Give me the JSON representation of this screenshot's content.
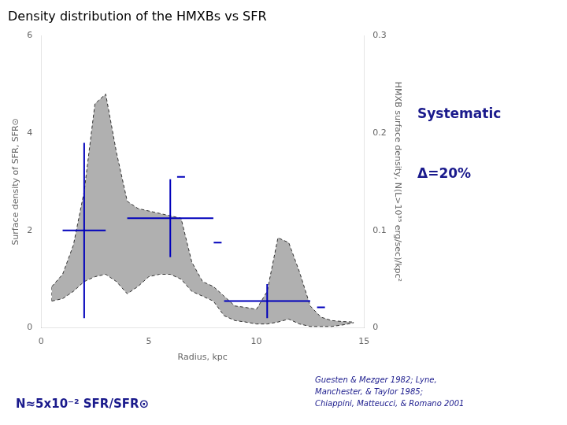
{
  "chart_data": {
    "type": "band",
    "title": "Density distribution of the HMXBs vs SFR",
    "xlabel": "Radius, kpc",
    "ylabel": "Surface density of SFR, SFR⊙",
    "y2label": "HMXB surface density, N(L>10³⁵ erg/sec)/kpc²",
    "xlim": [
      0,
      15
    ],
    "ylim": [
      0,
      6
    ],
    "y2lim": [
      0,
      0.3
    ],
    "xticks": [
      0,
      5,
      10,
      15
    ],
    "yticks": [
      0,
      2,
      4,
      6
    ],
    "y2ticks": [
      0,
      0.1,
      0.2,
      0.3
    ],
    "grid": false,
    "x": [
      0.5,
      1.0,
      1.5,
      2.0,
      2.5,
      3.0,
      3.5,
      4.0,
      4.5,
      5.0,
      5.5,
      6.0,
      6.5,
      7.0,
      7.5,
      8.0,
      8.5,
      9.0,
      9.5,
      10.0,
      10.5,
      11.0,
      11.5,
      12.0,
      12.5,
      13.0,
      13.5,
      14.0,
      14.5
    ],
    "series": [
      {
        "type": "band",
        "color": "#b0b0b0",
        "line_style": "dashed",
        "upper": [
          0.85,
          1.1,
          1.7,
          2.8,
          4.6,
          4.8,
          3.6,
          2.6,
          2.45,
          2.4,
          2.35,
          2.3,
          2.25,
          1.35,
          0.95,
          0.85,
          0.65,
          0.45,
          0.42,
          0.38,
          0.75,
          1.85,
          1.75,
          1.15,
          0.45,
          0.22,
          0.15,
          0.13,
          0.12
        ],
        "lower": [
          0.55,
          0.6,
          0.75,
          0.95,
          1.05,
          1.1,
          0.95,
          0.7,
          0.85,
          1.05,
          1.1,
          1.1,
          1.0,
          0.75,
          0.65,
          0.55,
          0.25,
          0.15,
          0.12,
          0.08,
          0.08,
          0.12,
          0.18,
          0.08,
          0.03,
          0.03,
          0.03,
          0.06,
          0.1
        ]
      },
      {
        "type": "errorbar",
        "color": "#0000bb",
        "x": [
          2.0,
          6.0,
          10.5
        ],
        "values": [
          2.0,
          2.25,
          0.55
        ],
        "xerr": [
          1.0,
          2.0,
          2.0
        ],
        "yerr": [
          1.8,
          0.8,
          0.35
        ]
      },
      {
        "type": "scatter",
        "color": "#0000bb",
        "marker": "dash",
        "x": [
          6.5,
          8.2,
          13.0
        ],
        "values": [
          3.1,
          1.75,
          0.42
        ]
      }
    ],
    "annotations": [
      {
        "text": "Systematic",
        "color": "#1a1a8c"
      },
      {
        "text": "Δ=20%",
        "color": "#1a1a8c"
      },
      {
        "text": "N≈5x10⁻² SFR/SFR⊙",
        "color": "#1a1a8c"
      },
      {
        "text": "Guesten & Mezger 1982; Lyne,\nManchester, & Taylor 1985;\nChiappini, Matteucci, & Romano 2001",
        "color": "#1a1a8c"
      }
    ]
  }
}
